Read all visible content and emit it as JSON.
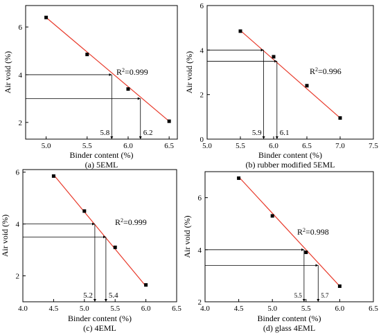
{
  "chart_data": [
    {
      "type": "scatter",
      "caption": "(a) 5EML",
      "xlabel": "Binder content (%)",
      "ylabel": "Air void (%)",
      "xlim": [
        4.75,
        6.6
      ],
      "ylim": [
        1.3,
        6.9
      ],
      "xticks": [
        "5.0",
        "5.5",
        "6.0",
        "6.5"
      ],
      "xtick_values": [
        5.0,
        5.5,
        6.0,
        6.5
      ],
      "yticks": [
        "2",
        "4",
        "6"
      ],
      "ytick_values": [
        2,
        4,
        6
      ],
      "x": [
        5.0,
        5.5,
        6.0,
        6.5
      ],
      "y": [
        6.4,
        4.85,
        3.4,
        2.05
      ],
      "fit": {
        "x": [
          5.0,
          6.5
        ],
        "y": [
          6.4,
          2.05
        ]
      },
      "r2_label": "=0.999",
      "guides": [
        {
          "y": 4.0,
          "x": 5.8,
          "label": "5.8"
        },
        {
          "y": 3.0,
          "x": 6.15,
          "label": "6.2"
        }
      ]
    },
    {
      "type": "scatter",
      "caption": "(b) rubber modified 5EML",
      "xlabel": "Binder content (%)",
      "ylabel": "Air void (%)",
      "xlim": [
        5.0,
        7.5
      ],
      "ylim": [
        0,
        6
      ],
      "xticks": [
        "5.0",
        "5.5",
        "6.0",
        "6.5",
        "7.0",
        "7.5"
      ],
      "xtick_values": [
        5.0,
        5.5,
        6.0,
        6.5,
        7.0,
        7.5
      ],
      "yticks": [
        "0",
        "2",
        "4",
        "6"
      ],
      "ytick_values": [
        0,
        2,
        4,
        6
      ],
      "x": [
        5.5,
        6.0,
        6.5,
        7.0
      ],
      "y": [
        4.85,
        3.7,
        2.4,
        0.95
      ],
      "fit": {
        "x": [
          5.5,
          7.0
        ],
        "y": [
          4.88,
          0.95
        ]
      },
      "r2_label": "=0.996",
      "guides": [
        {
          "y": 4.0,
          "x": 5.85,
          "label": "5.9"
        },
        {
          "y": 3.5,
          "x": 6.05,
          "label": "6.1"
        }
      ]
    },
    {
      "type": "scatter",
      "caption": "(c) 4EML",
      "xlabel": "Binder content (%)",
      "ylabel": "Air void (%)",
      "xlim": [
        4.0,
        6.5
      ],
      "ylim": [
        1.0,
        6.1
      ],
      "xticks": [
        "4.0",
        "4.5",
        "5.0",
        "5.5",
        "6.0",
        "6.5"
      ],
      "xtick_values": [
        4.0,
        4.5,
        5.0,
        5.5,
        6.0,
        6.5
      ],
      "yticks": [
        "2",
        "4",
        "6"
      ],
      "ytick_values": [
        2,
        4,
        6
      ],
      "x": [
        4.5,
        5.0,
        5.5,
        6.0
      ],
      "y": [
        5.85,
        4.5,
        3.1,
        1.65
      ],
      "fit": {
        "x": [
          4.5,
          6.0
        ],
        "y": [
          5.9,
          1.6
        ]
      },
      "r2_label": "=0.999",
      "guides": [
        {
          "y": 4.0,
          "x": 5.17,
          "label": "5.2"
        },
        {
          "y": 3.5,
          "x": 5.35,
          "label": "5.4"
        }
      ]
    },
    {
      "type": "scatter",
      "caption": "(d) glass 4EML",
      "xlabel": "Binder content (%)",
      "ylabel": "Air void (%)",
      "xlim": [
        4.0,
        6.5
      ],
      "ylim": [
        2.0,
        7.0
      ],
      "xticks": [
        "4.0",
        "4.5",
        "5.0",
        "5.5",
        "6.0",
        "6.5"
      ],
      "xtick_values": [
        4.0,
        4.5,
        5.0,
        5.5,
        6.0,
        6.5
      ],
      "yticks": [
        "2",
        "4",
        "6"
      ],
      "ytick_values": [
        2,
        4,
        6
      ],
      "x": [
        4.5,
        5.0,
        5.5,
        6.0
      ],
      "y": [
        6.75,
        5.3,
        3.9,
        2.6
      ],
      "fit": {
        "x": [
          4.5,
          6.0
        ],
        "y": [
          6.8,
          2.6
        ]
      },
      "r2_label": "=0.998",
      "guides": [
        {
          "y": 4.0,
          "x": 5.47,
          "label": "5.5"
        },
        {
          "y": 3.4,
          "x": 5.68,
          "label": "5.7"
        }
      ]
    }
  ]
}
